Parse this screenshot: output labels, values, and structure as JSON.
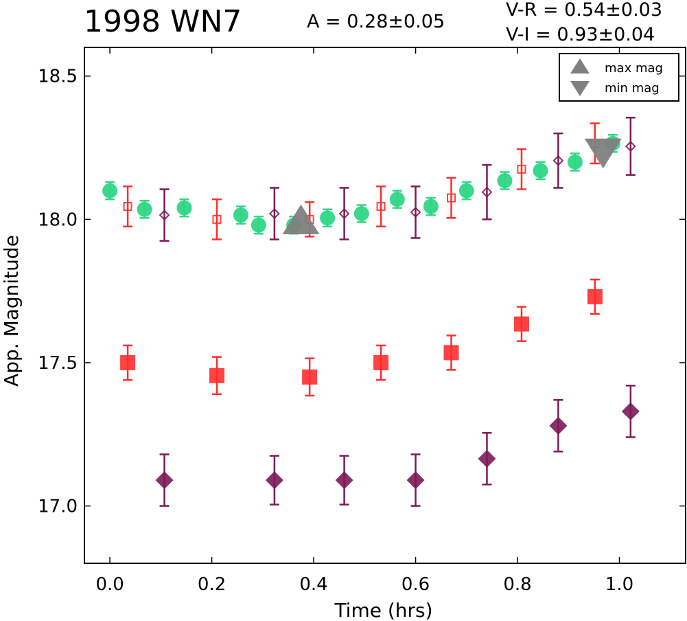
{
  "chart_data": {
    "type": "scatter",
    "title": "1998 WN7",
    "annotations": {
      "amplitude": "A  = 0.28±0.05",
      "v_minus_r": "V-R = 0.54±0.03",
      "v_minus_i": "V-I  = 0.93±0.04"
    },
    "xlabel": "Time (hrs)",
    "ylabel": "App. Magnitude",
    "xlim": [
      -0.05,
      1.13
    ],
    "ylim": [
      18.6,
      16.8
    ],
    "y_inverted": true,
    "xticks": [
      0.0,
      0.2,
      0.4,
      0.6,
      0.8,
      1.0
    ],
    "xtick_labels": [
      "0.0",
      "0.2",
      "0.4",
      "0.6",
      "0.8",
      "1.0"
    ],
    "yticks": [
      17.0,
      17.5,
      18.0,
      18.5
    ],
    "ytick_labels": [
      "17.0",
      "17.5",
      "18.0",
      "18.5"
    ],
    "grid": false,
    "legend_position": "top-right",
    "legend": [
      {
        "label": "max mag",
        "marker": "triangle-up"
      },
      {
        "label": "min mag",
        "marker": "triangle-down"
      }
    ],
    "series": [
      {
        "marker": "diamond",
        "color": "#7b1a56",
        "filled": true,
        "role": "offset",
        "points": [
          {
            "x": 0.107,
            "y": 17.09,
            "err": 0.09
          },
          {
            "x": 0.323,
            "y": 17.09,
            "err": 0.085
          },
          {
            "x": 0.46,
            "y": 17.09,
            "err": 0.085
          },
          {
            "x": 0.6,
            "y": 17.09,
            "err": 0.09
          },
          {
            "x": 0.74,
            "y": 17.165,
            "err": 0.09
          },
          {
            "x": 0.88,
            "y": 17.28,
            "err": 0.09
          },
          {
            "x": 1.022,
            "y": 17.33,
            "err": 0.09
          }
        ]
      },
      {
        "marker": "square",
        "color": "#ff2d2d",
        "filled": true,
        "role": "offset",
        "points": [
          {
            "x": 0.035,
            "y": 17.5,
            "err": 0.06
          },
          {
            "x": 0.21,
            "y": 17.455,
            "err": 0.065
          },
          {
            "x": 0.392,
            "y": 17.45,
            "err": 0.065
          },
          {
            "x": 0.532,
            "y": 17.5,
            "err": 0.06
          },
          {
            "x": 0.67,
            "y": 17.535,
            "err": 0.06
          },
          {
            "x": 0.808,
            "y": 17.635,
            "err": 0.06
          },
          {
            "x": 0.952,
            "y": 17.73,
            "err": 0.06
          }
        ]
      },
      {
        "marker": "circle",
        "color": "#2fd686",
        "filled": true,
        "role": "data",
        "points": [
          {
            "x": 0.0,
            "y": 18.1,
            "err": 0.03
          },
          {
            "x": 0.068,
            "y": 18.035,
            "err": 0.03
          },
          {
            "x": 0.146,
            "y": 18.04,
            "err": 0.03
          },
          {
            "x": 0.257,
            "y": 18.015,
            "err": 0.03
          },
          {
            "x": 0.292,
            "y": 17.98,
            "err": 0.03
          },
          {
            "x": 0.361,
            "y": 17.98,
            "err": 0.03
          },
          {
            "x": 0.427,
            "y": 18.005,
            "err": 0.03
          },
          {
            "x": 0.494,
            "y": 18.02,
            "err": 0.03
          },
          {
            "x": 0.564,
            "y": 18.07,
            "err": 0.03
          },
          {
            "x": 0.63,
            "y": 18.045,
            "err": 0.03
          },
          {
            "x": 0.7,
            "y": 18.1,
            "err": 0.03
          },
          {
            "x": 0.775,
            "y": 18.135,
            "err": 0.03
          },
          {
            "x": 0.845,
            "y": 18.17,
            "err": 0.03
          },
          {
            "x": 0.913,
            "y": 18.2,
            "err": 0.03
          },
          {
            "x": 0.987,
            "y": 18.265,
            "err": 0.03
          }
        ]
      },
      {
        "marker": "square",
        "color": "#ff2d2d",
        "filled": false,
        "role": "data",
        "points": [
          {
            "x": 0.035,
            "y": 18.045,
            "err": 0.07
          },
          {
            "x": 0.21,
            "y": 18.0,
            "err": 0.07
          },
          {
            "x": 0.392,
            "y": 18.0,
            "err": 0.06
          },
          {
            "x": 0.532,
            "y": 18.045,
            "err": 0.07
          },
          {
            "x": 0.67,
            "y": 18.075,
            "err": 0.07
          },
          {
            "x": 0.808,
            "y": 18.175,
            "err": 0.07
          },
          {
            "x": 0.952,
            "y": 18.265,
            "err": 0.07
          }
        ]
      },
      {
        "marker": "diamond",
        "color": "#7b1a56",
        "filled": false,
        "role": "data",
        "points": [
          {
            "x": 0.107,
            "y": 18.015,
            "err": 0.09
          },
          {
            "x": 0.323,
            "y": 18.02,
            "err": 0.09
          },
          {
            "x": 0.46,
            "y": 18.02,
            "err": 0.09
          },
          {
            "x": 0.6,
            "y": 18.025,
            "err": 0.09
          },
          {
            "x": 0.74,
            "y": 18.095,
            "err": 0.095
          },
          {
            "x": 0.88,
            "y": 18.205,
            "err": 0.095
          },
          {
            "x": 1.022,
            "y": 18.255,
            "err": 0.1
          }
        ]
      }
    ],
    "extrema": [
      {
        "type": "max",
        "x": 0.375,
        "y": 17.985,
        "marker": "triangle-up",
        "color": "#808080"
      },
      {
        "type": "min",
        "x": 0.968,
        "y": 18.245,
        "marker": "triangle-down",
        "color": "#808080"
      }
    ]
  }
}
